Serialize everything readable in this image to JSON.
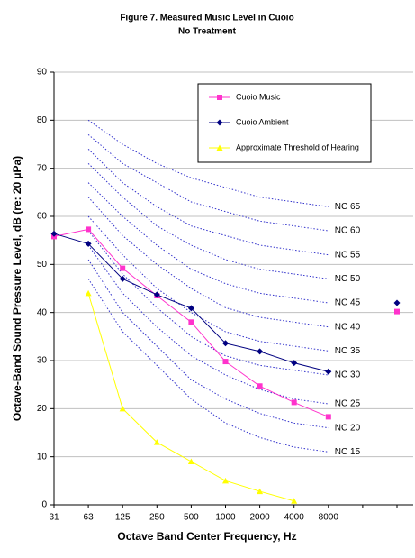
{
  "chart_data": {
    "type": "line",
    "title": "Figure 7. Measured Music Level in Cuoio",
    "subtitle": "No Treatment",
    "x_label": "Octave Band Center Frequency, Hz",
    "y_label": "Octave-Band Sound Pressure Level, dB (re: 20 µPa)",
    "categories": [
      "31",
      "63",
      "125",
      "250",
      "500",
      "1000",
      "2000",
      "4000",
      "8000",
      null,
      null
    ],
    "ylim": [
      0,
      90
    ],
    "yticks": [
      0,
      10,
      20,
      30,
      40,
      50,
      60,
      70,
      80,
      90
    ],
    "grid": true,
    "legend": "top-right",
    "series": [
      {
        "name": "Cuoio Music",
        "color": "#ff33cc",
        "marker": "square",
        "values": [
          55.8,
          57.3,
          49.2,
          43.5,
          38,
          29.8,
          24.7,
          21.3,
          18.3,
          null,
          40.2
        ]
      },
      {
        "name": "Cuoio Ambient",
        "color": "#000080",
        "marker": "diamond",
        "values": [
          56.4,
          54.3,
          47,
          43.7,
          40.9,
          33.6,
          31.9,
          29.5,
          27.7,
          null,
          42
        ]
      },
      {
        "name": "Approximate Threshold of Hearing",
        "color": "#ffff00",
        "marker": "triangle",
        "values": [
          null,
          44,
          20,
          13,
          9,
          5,
          2.8,
          0.8,
          null,
          null,
          null
        ]
      }
    ],
    "nc_color": "#3333cc",
    "nc_curves": [
      {
        "label": "NC 65",
        "values": [
          null,
          80,
          75,
          71,
          68,
          66,
          64,
          63,
          62,
          null,
          null
        ]
      },
      {
        "label": "NC 60",
        "values": [
          null,
          77,
          71,
          67,
          63,
          61,
          59,
          58,
          57,
          null,
          null
        ]
      },
      {
        "label": "NC 55",
        "values": [
          null,
          74,
          67,
          62,
          58,
          56,
          54,
          53,
          52,
          null,
          null
        ]
      },
      {
        "label": "NC 50",
        "values": [
          null,
          71,
          64,
          58,
          54,
          51,
          49,
          48,
          47,
          null,
          null
        ]
      },
      {
        "label": "NC 45",
        "values": [
          null,
          67,
          60,
          54,
          49,
          46,
          44,
          43,
          42,
          null,
          null
        ]
      },
      {
        "label": "NC 40",
        "values": [
          null,
          64,
          56,
          50,
          45,
          41,
          39,
          38,
          37,
          null,
          null
        ]
      },
      {
        "label": "NC 35",
        "values": [
          null,
          60,
          52,
          45,
          40,
          36,
          34,
          33,
          32,
          null,
          null
        ]
      },
      {
        "label": "NC 30",
        "values": [
          null,
          57,
          48,
          41,
          35,
          31,
          29,
          28,
          27,
          null,
          null
        ]
      },
      {
        "label": "NC 25",
        "values": [
          null,
          54,
          44,
          37,
          31,
          27,
          24,
          22,
          21,
          null,
          null
        ]
      },
      {
        "label": "NC 20",
        "values": [
          null,
          51,
          40,
          33,
          26,
          22,
          19,
          17,
          16,
          null,
          null
        ]
      },
      {
        "label": "NC 15",
        "values": [
          null,
          47,
          36,
          29,
          22,
          17,
          14,
          12,
          11,
          null,
          null
        ]
      }
    ]
  }
}
